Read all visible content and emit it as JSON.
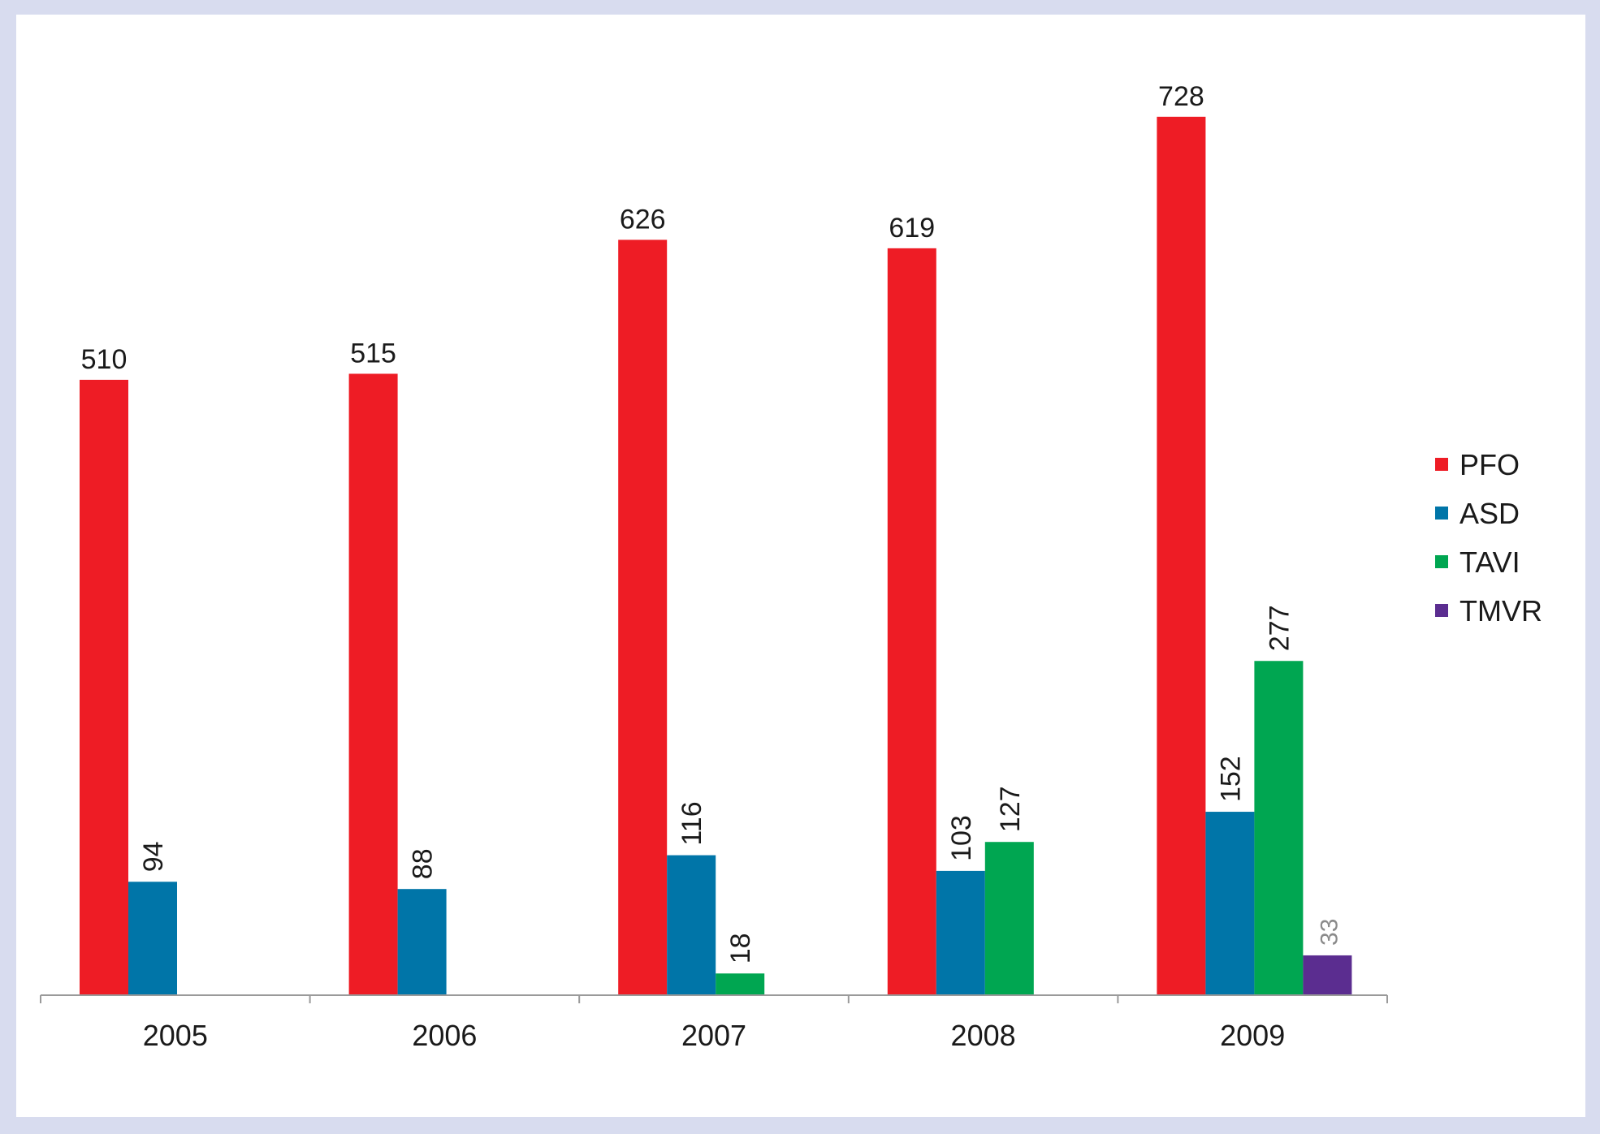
{
  "chart_data": {
    "type": "bar",
    "title": "",
    "xlabel": "",
    "ylabel": "",
    "categories": [
      "2005",
      "2006",
      "2007",
      "2008",
      "2009"
    ],
    "ylim": [
      0,
      760
    ],
    "grid": false,
    "legend_position": "right",
    "series": [
      {
        "name": "PFO",
        "color": "#ee1c25",
        "values": [
          510,
          515,
          626,
          619,
          728
        ]
      },
      {
        "name": "ASD",
        "color": "#0075a8",
        "values": [
          94,
          88,
          116,
          103,
          152
        ]
      },
      {
        "name": "TAVI",
        "color": "#00a651",
        "values": [
          null,
          null,
          18,
          127,
          277
        ]
      },
      {
        "name": "TMVR",
        "color": "#5b2d90",
        "values": [
          null,
          null,
          null,
          null,
          33
        ]
      }
    ],
    "data_labels": {
      "PFO": [
        "510",
        "515",
        "626",
        "619",
        "728"
      ],
      "ASD": [
        "94",
        "88",
        "116",
        "103",
        "152"
      ],
      "TAVI": [
        "",
        "",
        "18",
        "127",
        "277"
      ],
      "TMVR": [
        "",
        "",
        "",
        "",
        "33"
      ]
    }
  }
}
